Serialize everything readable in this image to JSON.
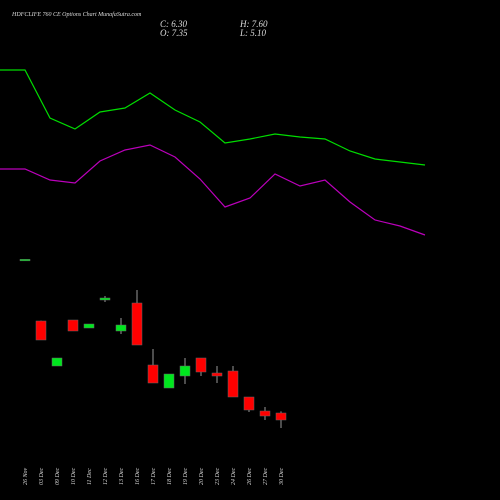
{
  "chart_data": [
    {
      "type": "candlestick",
      "title": "HDFCLIFE 760 CE Options Chart MunafaSutra.com",
      "ohlc_labels": [
        "C: 6.30",
        "O: 7.35",
        "H: 7.60",
        "L: 5.10"
      ],
      "categories": [
        "26 Nov",
        "03 Dec",
        "09 Dec",
        "10 Dec",
        "11 Dec",
        "12 Dec",
        "13 Dec",
        "16 Dec",
        "17 Dec",
        "18 Dec",
        "19 Dec",
        "20 Dec",
        "23 Dec",
        "24 Dec",
        "26 Dec",
        "27 Dec",
        "30 Dec"
      ],
      "open": [
        30.2,
        21.15,
        14.4,
        21.3,
        20.1,
        24.3,
        19.65,
        23.85,
        14.55,
        11.1,
        12.9,
        15.6,
        13.35,
        13.65,
        9.75,
        7.65,
        7.35
      ],
      "high": [
        30.4,
        21.2,
        15.6,
        21.3,
        20.7,
        24.9,
        21.6,
        25.8,
        16.95,
        13.2,
        15.6,
        15.6,
        14.4,
        14.4,
        9.75,
        8.25,
        7.6
      ],
      "low": [
        30.2,
        18.3,
        14.4,
        19.65,
        20.1,
        24.0,
        19.2,
        17.55,
        11.85,
        11.1,
        11.7,
        12.9,
        11.85,
        9.75,
        7.5,
        6.3,
        5.1
      ],
      "close": [
        30.4,
        18.3,
        15.6,
        19.65,
        20.7,
        24.6,
        20.55,
        17.55,
        11.85,
        13.2,
        14.4,
        13.5,
        12.9,
        9.75,
        7.8,
        6.9,
        6.3
      ],
      "up_color": "#00e61e",
      "down_color": "#ff0000",
      "ylim": [
        3,
        66
      ]
    },
    {
      "type": "line",
      "x": [
        0,
        1,
        2,
        3,
        4,
        5,
        6,
        7,
        8,
        9,
        10,
        11,
        12,
        13,
        14,
        15,
        16,
        17
      ],
      "xlim": [
        0,
        17
      ],
      "ylim": [
        3,
        66
      ],
      "series": [
        {
          "color": "#00dd00",
          "values": [
            58.8,
            58.8,
            51.6,
            49.95,
            52.5,
            53.1,
            55.35,
            52.8,
            51.0,
            47.85,
            48.45,
            49.2,
            48.75,
            48.45,
            46.65,
            45.45,
            45.0,
            44.55
          ]
        },
        {
          "color": "#bb00bb",
          "values": [
            43.95,
            43.95,
            42.3,
            41.85,
            45.15,
            46.8,
            47.55,
            45.75,
            42.45,
            38.25,
            39.6,
            43.2,
            41.4,
            42.3,
            39.0,
            36.3,
            35.4,
            34.05
          ]
        }
      ]
    }
  ]
}
